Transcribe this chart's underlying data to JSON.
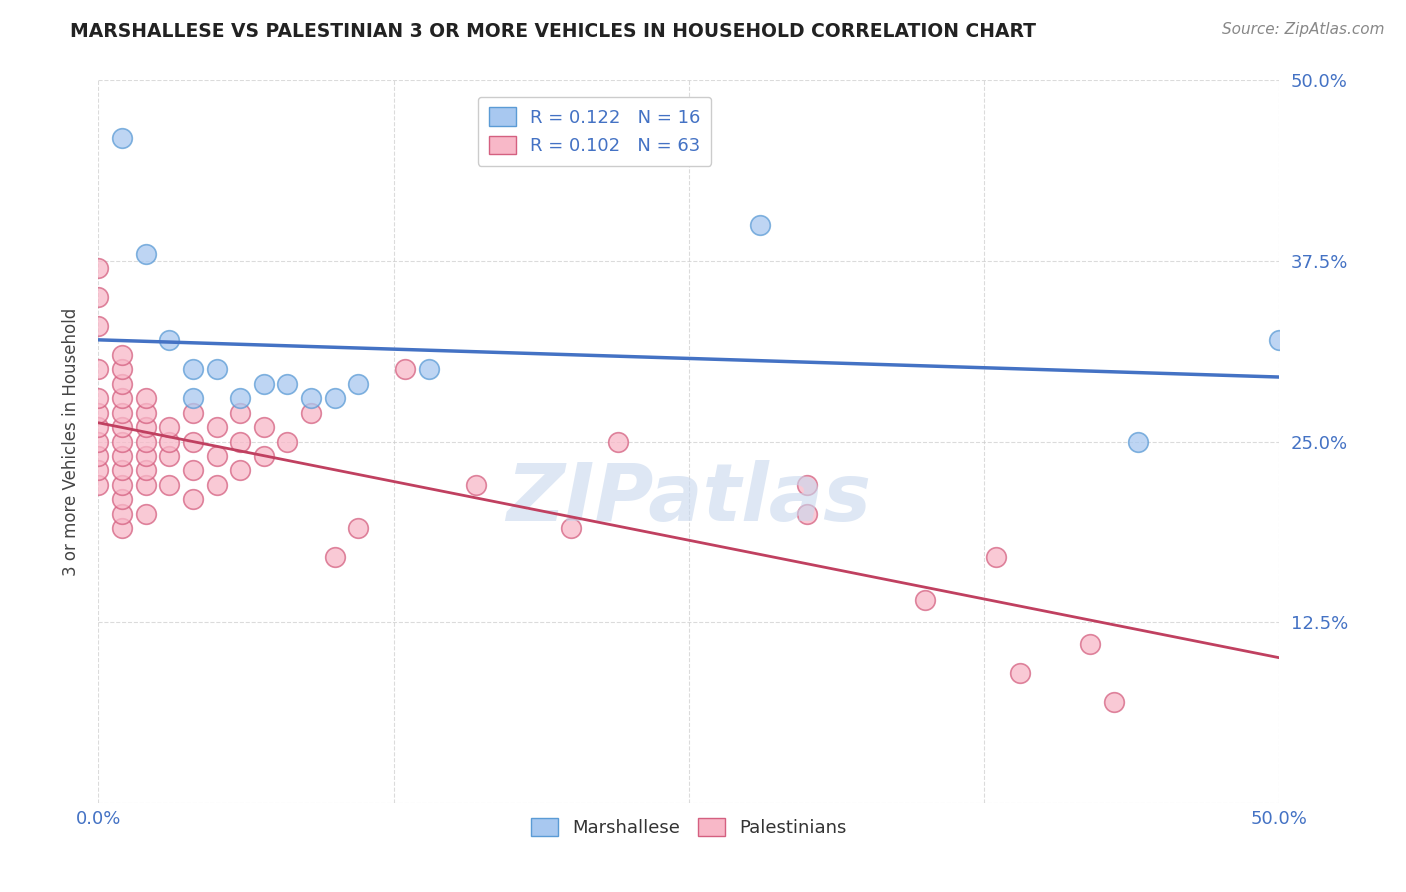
{
  "title": "MARSHALLESE VS PALESTINIAN 3 OR MORE VEHICLES IN HOUSEHOLD CORRELATION CHART",
  "source": "Source: ZipAtlas.com",
  "ylabel": "3 or more Vehicles in Household",
  "xlim": [
    0.0,
    0.5
  ],
  "ylim": [
    0.0,
    0.5
  ],
  "marshallese_color": "#a8c8f0",
  "palestinian_color": "#f8b8c8",
  "marshallese_edge_color": "#5b9bd5",
  "palestinian_edge_color": "#d46080",
  "marshallese_line_color": "#4472c4",
  "palestinian_line_color": "#c04060",
  "R_marshallese": 0.122,
  "N_marshallese": 16,
  "R_palestinian": 0.102,
  "N_palestinian": 63,
  "marshallese_scatter": [
    [
      0.01,
      0.46
    ],
    [
      0.02,
      0.38
    ],
    [
      0.03,
      0.32
    ],
    [
      0.04,
      0.3
    ],
    [
      0.04,
      0.28
    ],
    [
      0.05,
      0.3
    ],
    [
      0.06,
      0.28
    ],
    [
      0.07,
      0.29
    ],
    [
      0.08,
      0.29
    ],
    [
      0.09,
      0.28
    ],
    [
      0.1,
      0.28
    ],
    [
      0.11,
      0.29
    ],
    [
      0.14,
      0.3
    ],
    [
      0.28,
      0.4
    ],
    [
      0.44,
      0.25
    ],
    [
      0.5,
      0.32
    ]
  ],
  "palestinian_scatter": [
    [
      0.0,
      0.22
    ],
    [
      0.0,
      0.23
    ],
    [
      0.0,
      0.24
    ],
    [
      0.0,
      0.25
    ],
    [
      0.0,
      0.26
    ],
    [
      0.0,
      0.27
    ],
    [
      0.0,
      0.28
    ],
    [
      0.0,
      0.3
    ],
    [
      0.0,
      0.33
    ],
    [
      0.0,
      0.35
    ],
    [
      0.0,
      0.37
    ],
    [
      0.01,
      0.19
    ],
    [
      0.01,
      0.2
    ],
    [
      0.01,
      0.21
    ],
    [
      0.01,
      0.22
    ],
    [
      0.01,
      0.23
    ],
    [
      0.01,
      0.24
    ],
    [
      0.01,
      0.25
    ],
    [
      0.01,
      0.26
    ],
    [
      0.01,
      0.27
    ],
    [
      0.01,
      0.28
    ],
    [
      0.01,
      0.29
    ],
    [
      0.01,
      0.3
    ],
    [
      0.01,
      0.31
    ],
    [
      0.02,
      0.2
    ],
    [
      0.02,
      0.22
    ],
    [
      0.02,
      0.23
    ],
    [
      0.02,
      0.24
    ],
    [
      0.02,
      0.25
    ],
    [
      0.02,
      0.26
    ],
    [
      0.02,
      0.27
    ],
    [
      0.02,
      0.28
    ],
    [
      0.03,
      0.22
    ],
    [
      0.03,
      0.24
    ],
    [
      0.03,
      0.25
    ],
    [
      0.03,
      0.26
    ],
    [
      0.04,
      0.21
    ],
    [
      0.04,
      0.23
    ],
    [
      0.04,
      0.25
    ],
    [
      0.04,
      0.27
    ],
    [
      0.05,
      0.22
    ],
    [
      0.05,
      0.24
    ],
    [
      0.05,
      0.26
    ],
    [
      0.06,
      0.23
    ],
    [
      0.06,
      0.25
    ],
    [
      0.06,
      0.27
    ],
    [
      0.07,
      0.24
    ],
    [
      0.07,
      0.26
    ],
    [
      0.08,
      0.25
    ],
    [
      0.09,
      0.27
    ],
    [
      0.1,
      0.17
    ],
    [
      0.11,
      0.19
    ],
    [
      0.13,
      0.3
    ],
    [
      0.16,
      0.22
    ],
    [
      0.2,
      0.19
    ],
    [
      0.22,
      0.25
    ],
    [
      0.3,
      0.2
    ],
    [
      0.3,
      0.22
    ],
    [
      0.35,
      0.14
    ],
    [
      0.38,
      0.17
    ],
    [
      0.39,
      0.09
    ],
    [
      0.42,
      0.11
    ],
    [
      0.43,
      0.07
    ]
  ],
  "background_color": "#ffffff",
  "grid_color": "#cccccc",
  "watermark": "ZIPatlas",
  "watermark_color": "#c8d8ee"
}
